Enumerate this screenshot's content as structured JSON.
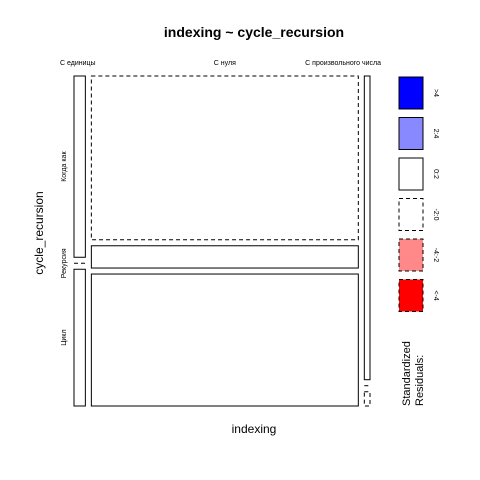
{
  "chart_data": {
    "type": "mosaic",
    "title": "indexing ~ cycle_recursion",
    "xlabel": "indexing",
    "ylabel": "cycle_recursion",
    "x_categories": [
      "С единицы",
      "С нуля",
      "С произвольного числа"
    ],
    "y_categories": [
      "Когда как",
      "Рекурсия",
      "Цикл"
    ],
    "column_proportions": [
      0.04,
      0.94,
      0.02
    ],
    "cells": [
      {
        "x": "С единицы",
        "y": "Когда как",
        "proportion": 0.57,
        "residual_band": "0:2"
      },
      {
        "x": "С единицы",
        "y": "Рекурсия",
        "proportion": 0.0,
        "residual_band": "-2:0"
      },
      {
        "x": "С единицы",
        "y": "Цикл",
        "proportion": 0.43,
        "residual_band": "0:2"
      },
      {
        "x": "С нуля",
        "y": "Когда как",
        "proportion": 0.515,
        "residual_band": "-2:0"
      },
      {
        "x": "С нуля",
        "y": "Рекурсия",
        "proportion": 0.07,
        "residual_band": "0:2"
      },
      {
        "x": "С нуля",
        "y": "Цикл",
        "proportion": 0.415,
        "residual_band": "0:2"
      },
      {
        "x": "С произвольного числа",
        "y": "Когда как",
        "proportion": 0.955,
        "residual_band": "0:2"
      },
      {
        "x": "С произвольного числа",
        "y": "Рекурсия",
        "proportion": 0.0,
        "residual_band": "-2:0"
      },
      {
        "x": "С произвольного числа",
        "y": "Цикл",
        "proportion": 0.045,
        "residual_band": "-2:0"
      }
    ],
    "legend": {
      "title": "Standardized\nResiduals:",
      "position": "right",
      "bands": [
        {
          "label": ">4",
          "color": "#0000FF",
          "dashed": false
        },
        {
          "label": "2:4",
          "color": "#8888FF",
          "dashed": false
        },
        {
          "label": "0:2",
          "color": "#FFFFFF",
          "dashed": false
        },
        {
          "label": "-2:0",
          "color": "#FFFFFF",
          "dashed": true
        },
        {
          "label": "-4:-2",
          "color": "#FF8888",
          "dashed": true
        },
        {
          "label": "<-4",
          "color": "#FF0000",
          "dashed": true
        }
      ]
    }
  }
}
